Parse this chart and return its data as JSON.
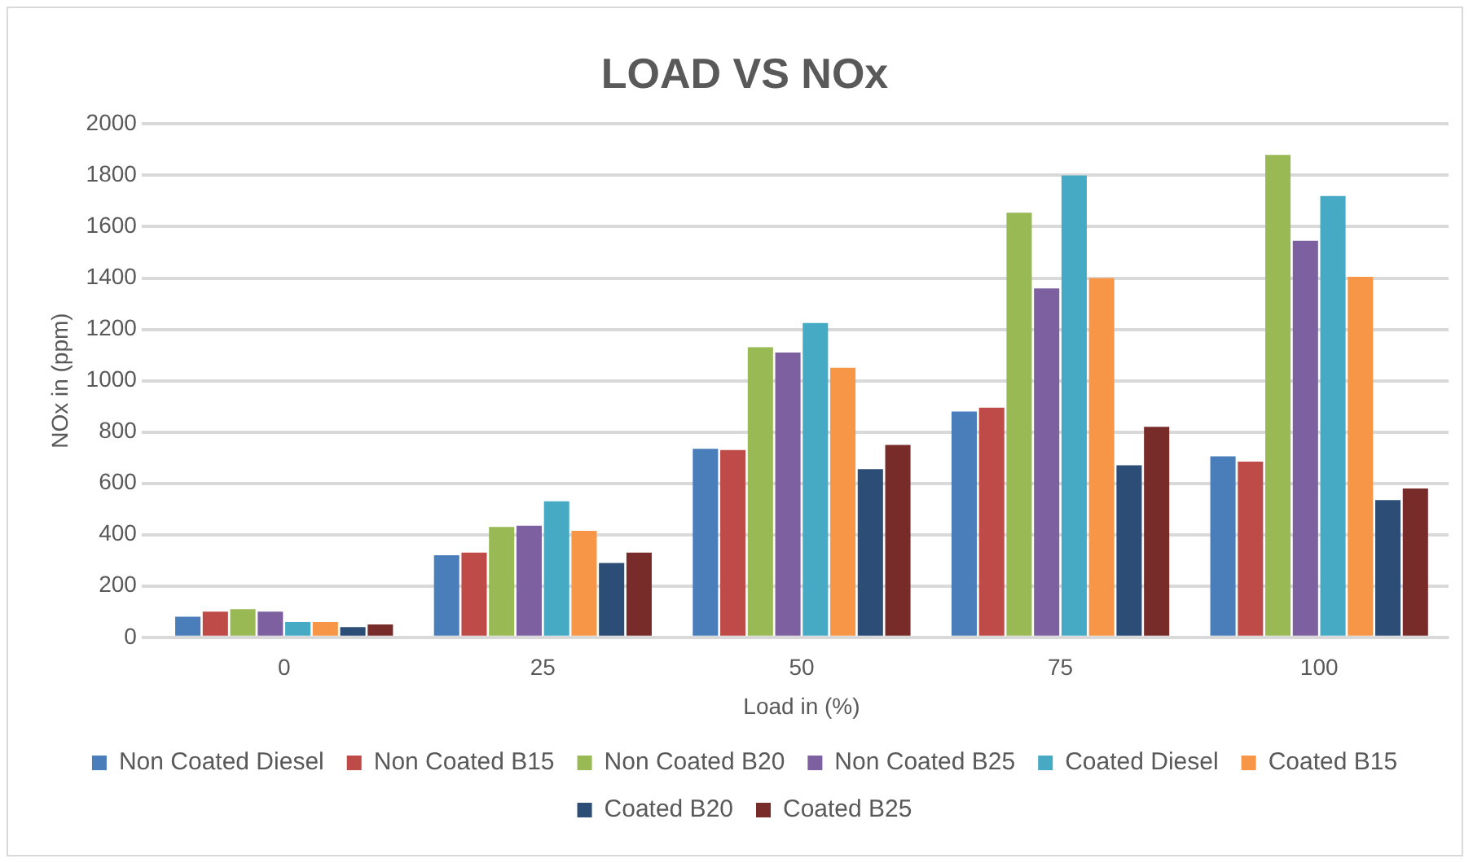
{
  "chart_data": {
    "type": "bar",
    "title": "LOAD VS NOx",
    "xlabel": "Load in (%)",
    "ylabel": "NOx in (ppm)",
    "categories": [
      "0",
      "25",
      "50",
      "75",
      "100"
    ],
    "ylim": [
      0,
      2000
    ],
    "yticks": [
      0,
      200,
      400,
      600,
      800,
      1000,
      1200,
      1400,
      1600,
      1800,
      2000
    ],
    "grid": "y",
    "legend": "bottom",
    "series": [
      {
        "name": "Non Coated Diesel",
        "color": "#4a7ebb",
        "values": [
          80,
          320,
          735,
          880,
          705
        ]
      },
      {
        "name": "Non Coated B15",
        "color": "#be4b48",
        "values": [
          100,
          330,
          730,
          895,
          685
        ]
      },
      {
        "name": "Non Coated B20",
        "color": "#98b954",
        "values": [
          110,
          430,
          1130,
          1655,
          1880
        ]
      },
      {
        "name": "Non Coated B25",
        "color": "#7d60a0",
        "values": [
          100,
          435,
          1110,
          1360,
          1545
        ]
      },
      {
        "name": "Coated Diesel",
        "color": "#46aac5",
        "values": [
          60,
          530,
          1225,
          1800,
          1720
        ]
      },
      {
        "name": "Coated B15",
        "color": "#f79646",
        "values": [
          60,
          415,
          1050,
          1400,
          1405
        ]
      },
      {
        "name": "Coated B20",
        "color": "#2c4d75",
        "values": [
          40,
          290,
          655,
          670,
          535
        ]
      },
      {
        "name": "Coated B25",
        "color": "#772c2a",
        "values": [
          50,
          330,
          750,
          820,
          580
        ]
      }
    ]
  }
}
